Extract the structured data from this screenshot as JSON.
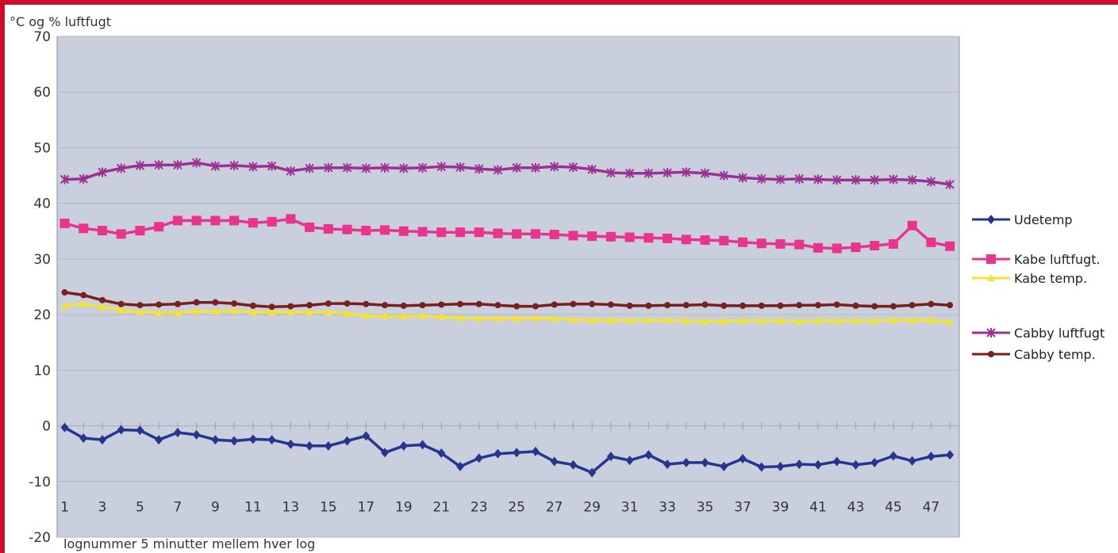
{
  "chart_data": {
    "type": "line",
    "title": "",
    "ylabel": "°C og % luftfugt",
    "xlabel": "lognummer 5 minutter mellem hver log",
    "ylim": [
      -20,
      70
    ],
    "yticks": [
      -20,
      -10,
      0,
      10,
      20,
      30,
      40,
      50,
      60,
      70
    ],
    "xticks": [
      1,
      3,
      5,
      7,
      9,
      11,
      13,
      15,
      17,
      19,
      21,
      23,
      25,
      27,
      29,
      31,
      33,
      35,
      37,
      39,
      41,
      43,
      45,
      47
    ],
    "grid": true,
    "legend_position": "right",
    "x": [
      1,
      2,
      3,
      4,
      5,
      6,
      7,
      8,
      9,
      10,
      11,
      12,
      13,
      14,
      15,
      16,
      17,
      18,
      19,
      20,
      21,
      22,
      23,
      24,
      25,
      26,
      27,
      28,
      29,
      30,
      31,
      32,
      33,
      34,
      35,
      36,
      37,
      38,
      39,
      40,
      41,
      42,
      43,
      44,
      45,
      46,
      47,
      48
    ],
    "series": [
      {
        "name": "Udetemp",
        "color": "#26358f",
        "marker": "diamond",
        "values": [
          -0.3,
          -2.2,
          -2.5,
          -0.7,
          -0.8,
          -2.5,
          -1.2,
          -1.6,
          -2.5,
          -2.7,
          -2.4,
          -2.5,
          -3.3,
          -3.6,
          -3.6,
          -2.7,
          -1.8,
          -4.8,
          -3.6,
          -3.4,
          -4.9,
          -7.3,
          -5.8,
          -5.0,
          -4.8,
          -4.6,
          -6.4,
          -7.0,
          -8.4,
          -5.5,
          -6.2,
          -5.2,
          -6.9,
          -6.6,
          -6.6,
          -7.3,
          -5.9,
          -7.4,
          -7.3,
          -6.9,
          -7.0,
          -6.4,
          -7.0,
          -6.6,
          -5.4,
          -6.3,
          -5.5,
          -5.2
        ]
      },
      {
        "name": "Kabe luftfugt.",
        "color": "#e8348f",
        "marker": "square",
        "values": [
          36.4,
          35.5,
          35.1,
          34.5,
          35.1,
          35.8,
          36.9,
          36.9,
          36.9,
          36.9,
          36.5,
          36.7,
          37.2,
          35.7,
          35.4,
          35.3,
          35.1,
          35.2,
          35.0,
          34.9,
          34.8,
          34.8,
          34.8,
          34.6,
          34.5,
          34.5,
          34.4,
          34.2,
          34.1,
          34.0,
          33.9,
          33.8,
          33.7,
          33.5,
          33.4,
          33.3,
          33.0,
          32.8,
          32.7,
          32.6,
          32.0,
          31.9,
          32.1,
          32.4,
          32.7,
          36.0,
          33.0,
          32.3
        ]
      },
      {
        "name": "Kabe temp.",
        "color": "#f2e23a",
        "marker": "triangle",
        "values": [
          21.6,
          21.9,
          21.4,
          20.8,
          20.5,
          20.3,
          20.3,
          20.6,
          20.6,
          20.7,
          20.5,
          20.4,
          20.5,
          20.4,
          20.4,
          20.2,
          19.8,
          19.7,
          19.7,
          19.8,
          19.6,
          19.4,
          19.3,
          19.3,
          19.3,
          19.4,
          19.3,
          19.1,
          19.0,
          19.0,
          19.0,
          19.0,
          19.0,
          18.9,
          18.8,
          18.8,
          18.9,
          18.9,
          18.9,
          18.8,
          18.9,
          18.9,
          18.9,
          18.9,
          19.0,
          19.0,
          19.0,
          18.6
        ]
      },
      {
        "name": "Cabby luftfugt",
        "color": "#9b3193",
        "marker": "asterisk",
        "values": [
          44.3,
          44.4,
          45.6,
          46.3,
          46.8,
          46.9,
          46.9,
          47.3,
          46.7,
          46.8,
          46.6,
          46.7,
          45.8,
          46.3,
          46.4,
          46.4,
          46.3,
          46.4,
          46.3,
          46.4,
          46.6,
          46.5,
          46.2,
          46.0,
          46.4,
          46.4,
          46.6,
          46.5,
          46.1,
          45.5,
          45.4,
          45.4,
          45.5,
          45.6,
          45.4,
          45.0,
          44.6,
          44.4,
          44.3,
          44.4,
          44.3,
          44.2,
          44.2,
          44.2,
          44.3,
          44.2,
          43.9,
          43.4
        ]
      },
      {
        "name": "Cabby temp.",
        "color": "#7a1f1f",
        "marker": "circle",
        "values": [
          24.0,
          23.5,
          22.6,
          21.9,
          21.7,
          21.8,
          21.9,
          22.2,
          22.2,
          22.0,
          21.6,
          21.4,
          21.5,
          21.7,
          22.0,
          22.0,
          21.9,
          21.7,
          21.6,
          21.7,
          21.8,
          21.9,
          21.9,
          21.7,
          21.5,
          21.5,
          21.8,
          21.9,
          21.9,
          21.8,
          21.6,
          21.6,
          21.7,
          21.7,
          21.8,
          21.6,
          21.6,
          21.6,
          21.6,
          21.7,
          21.7,
          21.8,
          21.6,
          21.5,
          21.5,
          21.7,
          21.9,
          21.7
        ]
      }
    ]
  }
}
